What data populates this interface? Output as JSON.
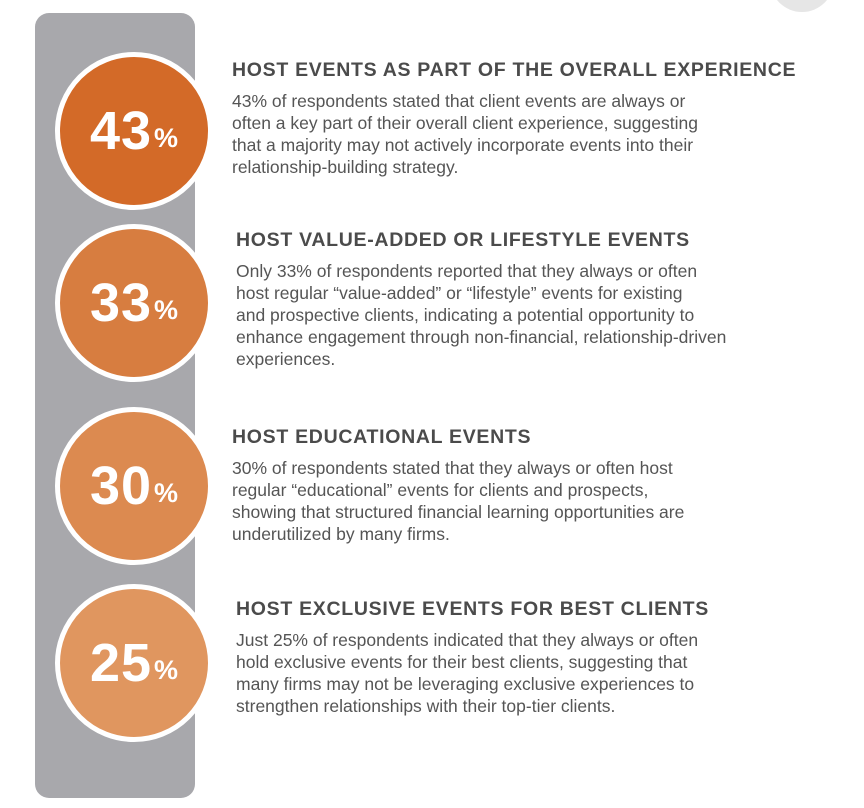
{
  "colors": {
    "bar": "#a8a8ac",
    "circle_1": "#d36a28",
    "circle_2": "#d77d40",
    "circle_3": "#dc8a50",
    "circle_4": "#e0965f"
  },
  "items": [
    {
      "value": "43",
      "percent_sign": "%",
      "title": "HOST EVENTS AS PART OF THE OVERALL EXPERIENCE",
      "lines": [
        "43% of respondents stated that client events are always or",
        "often a key part of their overall client experience, suggesting",
        "that a majority may not actively incorporate events into their",
        "relationship-building strategy."
      ]
    },
    {
      "value": "33",
      "percent_sign": "%",
      "title": "HOST VALUE-ADDED OR LIFESTYLE EVENTS",
      "lines": [
        "Only 33% of respondents reported that they always or often",
        "host regular “value-added” or “lifestyle” events for existing",
        "and prospective clients, indicating a potential opportunity to",
        "enhance engagement through non-financial, relationship-driven",
        "experiences."
      ]
    },
    {
      "value": "30",
      "percent_sign": "%",
      "title": "HOST EDUCATIONAL EVENTS",
      "lines": [
        "30% of respondents stated that they always or often host",
        "regular “educational” events for clients and prospects,",
        "showing that structured financial learning opportunities are",
        "underutilized by many firms."
      ]
    },
    {
      "value": "25",
      "percent_sign": "%",
      "title": "HOST EXCLUSIVE EVENTS FOR BEST CLIENTS",
      "lines": [
        "Just 25% of respondents indicated that they always or often",
        "hold exclusive events for their best clients, suggesting that",
        "many firms may not be leveraging exclusive experiences to",
        "strengthen relationships with their top-tier clients."
      ]
    }
  ]
}
